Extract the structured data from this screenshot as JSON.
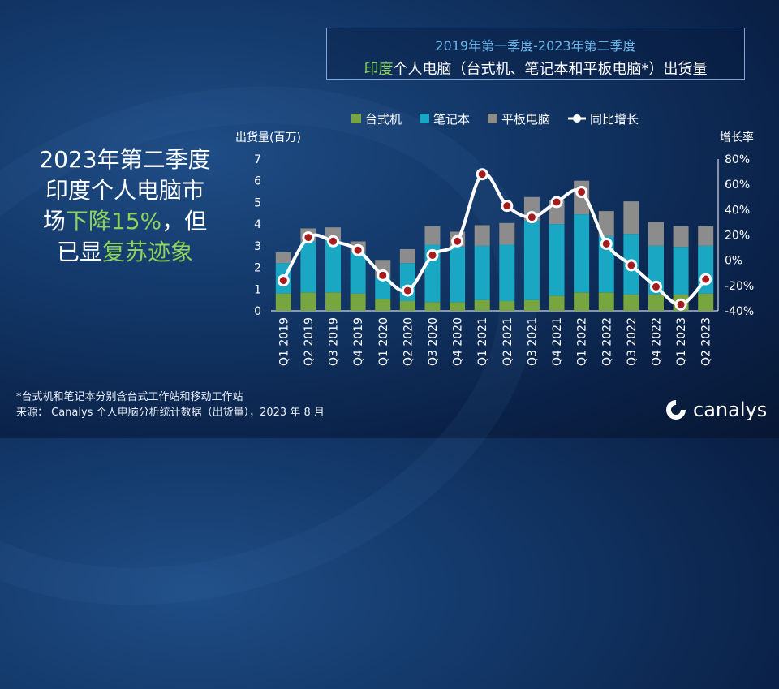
{
  "header": {
    "title_line1": "2019年第一季度-2023年第二季度",
    "title_line2_highlight": "印度",
    "title_line2_rest": "个人电脑（台式机、笔记本和平板电脑*）出货量"
  },
  "headline": {
    "line1": "2023年第二季度",
    "line2": "印度个人电脑市",
    "line3_a": "场",
    "line3_green": "下降15%",
    "line3_b": "，但",
    "line4_a": "已显",
    "line4_green": "复苏迹象"
  },
  "footnote": {
    "line1": "*台式机和笔记本分别含台式工作站和移动工作站",
    "line2": "来源：  Canalys 个人电脑分析统计数据（出货量），2023 年 8 月"
  },
  "logo": {
    "text": "canalys"
  },
  "colors": {
    "desktop": "#77a53f",
    "notebook": "#1aa7c4",
    "tablet": "#8c8c8c",
    "yoy_line": "#ffffff",
    "yoy_marker": "#a61b1b",
    "headline_green": "#8bd35b"
  },
  "chart_data": {
    "type": "bar",
    "stacked": true,
    "categories": [
      "Q1 2019",
      "Q2 2019",
      "Q3 2019",
      "Q4 2019",
      "Q1 2020",
      "Q2 2020",
      "Q3 2020",
      "Q4 2020",
      "Q1 2021",
      "Q2 2021",
      "Q3 2021",
      "Q4 2021",
      "Q1 2022",
      "Q2 2022",
      "Q3 2022",
      "Q4 2022",
      "Q1 2023",
      "Q2 2023"
    ],
    "ylabel": "出货量(百万)",
    "y2label": "增长率",
    "ylim": [
      0,
      7
    ],
    "yticks": [
      0,
      1,
      2,
      3,
      4,
      5,
      6,
      7
    ],
    "y2lim": [
      -40,
      80
    ],
    "y2ticks": [
      "-40%",
      "-20%",
      "0%",
      "20%",
      "40%",
      "60%",
      "80%"
    ],
    "series": [
      {
        "name": "台式机",
        "values": [
          0.8,
          0.85,
          0.85,
          0.8,
          0.55,
          0.45,
          0.4,
          0.4,
          0.5,
          0.45,
          0.5,
          0.7,
          0.85,
          0.85,
          0.75,
          0.75,
          0.75,
          0.8
        ]
      },
      {
        "name": "笔记本",
        "values": [
          1.4,
          2.35,
          2.4,
          1.9,
          1.0,
          1.75,
          2.65,
          2.55,
          2.5,
          2.6,
          3.65,
          3.3,
          3.6,
          2.6,
          2.8,
          2.25,
          2.2,
          2.2
        ]
      },
      {
        "name": "平板电脑",
        "values": [
          0.5,
          0.6,
          0.6,
          0.5,
          0.8,
          0.65,
          0.85,
          0.7,
          0.95,
          1.0,
          1.1,
          1.1,
          1.55,
          1.15,
          1.5,
          1.1,
          0.95,
          0.9
        ]
      }
    ],
    "line_series": {
      "name": "同比增长",
      "axis": "right",
      "values": [
        -16,
        18,
        15,
        8,
        -12,
        -24,
        4,
        15,
        68,
        43,
        34,
        46,
        54,
        13,
        -4,
        -21,
        -35,
        -15
      ]
    },
    "legend_position": "top"
  }
}
